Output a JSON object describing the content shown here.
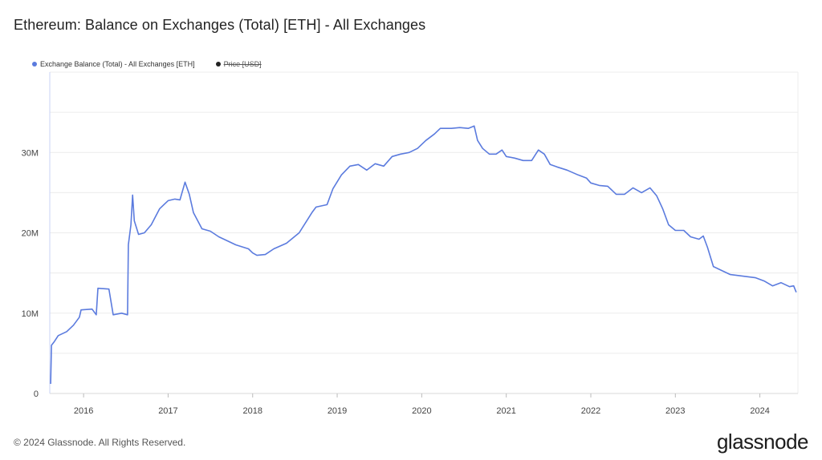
{
  "title": "Ethereum: Balance on Exchanges (Total) [ETH] - All Exchanges",
  "legend": {
    "items": [
      {
        "label": "Exchange Balance (Total) - All Exchanges [ETH]",
        "color": "#5b7bde",
        "active": true
      },
      {
        "label": "Price [USD]",
        "color": "#222222",
        "active": false
      }
    ]
  },
  "footer": {
    "copyright": "© 2024 Glassnode. All Rights Reserved.",
    "brand": "glassnode"
  },
  "chart_data": {
    "type": "line",
    "title": "Ethereum: Balance on Exchanges (Total) [ETH] - All Exchanges",
    "xlabel": "",
    "ylabel": "",
    "xlim": [
      2015.6,
      2024.45
    ],
    "ylim": [
      0,
      40000000
    ],
    "x_ticks": [
      {
        "value": 2016,
        "label": "2016"
      },
      {
        "value": 2017,
        "label": "2017"
      },
      {
        "value": 2018,
        "label": "2018"
      },
      {
        "value": 2019,
        "label": "2019"
      },
      {
        "value": 2020,
        "label": "2020"
      },
      {
        "value": 2021,
        "label": "2021"
      },
      {
        "value": 2022,
        "label": "2022"
      },
      {
        "value": 2023,
        "label": "2023"
      },
      {
        "value": 2024,
        "label": "2024"
      }
    ],
    "y_ticks": [
      {
        "value": 0,
        "label": "0"
      },
      {
        "value": 10000000,
        "label": "10M"
      },
      {
        "value": 20000000,
        "label": "20M"
      },
      {
        "value": 30000000,
        "label": "30M"
      }
    ],
    "grid": true,
    "legend_position": "top-left",
    "series": [
      {
        "name": "Exchange Balance (Total) - All Exchanges [ETH]",
        "color": "#5b7bde",
        "points": [
          [
            2015.61,
            1200000
          ],
          [
            2015.62,
            6000000
          ],
          [
            2015.65,
            6400000
          ],
          [
            2015.7,
            7200000
          ],
          [
            2015.8,
            7700000
          ],
          [
            2015.88,
            8500000
          ],
          [
            2015.95,
            9500000
          ],
          [
            2015.97,
            10400000
          ],
          [
            2016.1,
            10500000
          ],
          [
            2016.15,
            9800000
          ],
          [
            2016.17,
            13100000
          ],
          [
            2016.3,
            13000000
          ],
          [
            2016.35,
            9800000
          ],
          [
            2016.45,
            10000000
          ],
          [
            2016.52,
            9800000
          ],
          [
            2016.53,
            18500000
          ],
          [
            2016.56,
            21000000
          ],
          [
            2016.58,
            24700000
          ],
          [
            2016.6,
            21500000
          ],
          [
            2016.65,
            19800000
          ],
          [
            2016.72,
            20000000
          ],
          [
            2016.8,
            21000000
          ],
          [
            2016.9,
            23000000
          ],
          [
            2017.0,
            24000000
          ],
          [
            2017.08,
            24200000
          ],
          [
            2017.14,
            24100000
          ],
          [
            2017.2,
            26300000
          ],
          [
            2017.25,
            24800000
          ],
          [
            2017.3,
            22500000
          ],
          [
            2017.4,
            20500000
          ],
          [
            2017.5,
            20200000
          ],
          [
            2017.6,
            19500000
          ],
          [
            2017.7,
            19000000
          ],
          [
            2017.8,
            18500000
          ],
          [
            2017.95,
            18000000
          ],
          [
            2018.0,
            17500000
          ],
          [
            2018.05,
            17200000
          ],
          [
            2018.15,
            17300000
          ],
          [
            2018.25,
            18000000
          ],
          [
            2018.4,
            18700000
          ],
          [
            2018.55,
            20000000
          ],
          [
            2018.7,
            22500000
          ],
          [
            2018.75,
            23200000
          ],
          [
            2018.88,
            23500000
          ],
          [
            2018.95,
            25500000
          ],
          [
            2019.05,
            27200000
          ],
          [
            2019.15,
            28300000
          ],
          [
            2019.25,
            28500000
          ],
          [
            2019.35,
            27800000
          ],
          [
            2019.45,
            28600000
          ],
          [
            2019.55,
            28300000
          ],
          [
            2019.65,
            29500000
          ],
          [
            2019.75,
            29800000
          ],
          [
            2019.85,
            30000000
          ],
          [
            2019.95,
            30500000
          ],
          [
            2020.05,
            31500000
          ],
          [
            2020.15,
            32300000
          ],
          [
            2020.22,
            33000000
          ],
          [
            2020.35,
            33000000
          ],
          [
            2020.45,
            33100000
          ],
          [
            2020.55,
            33000000
          ],
          [
            2020.62,
            33300000
          ],
          [
            2020.66,
            31500000
          ],
          [
            2020.72,
            30500000
          ],
          [
            2020.8,
            29800000
          ],
          [
            2020.88,
            29800000
          ],
          [
            2020.95,
            30300000
          ],
          [
            2021.0,
            29500000
          ],
          [
            2021.1,
            29300000
          ],
          [
            2021.2,
            29000000
          ],
          [
            2021.3,
            29000000
          ],
          [
            2021.38,
            30300000
          ],
          [
            2021.45,
            29800000
          ],
          [
            2021.52,
            28500000
          ],
          [
            2021.6,
            28200000
          ],
          [
            2021.72,
            27800000
          ],
          [
            2021.85,
            27200000
          ],
          [
            2021.95,
            26800000
          ],
          [
            2022.0,
            26200000
          ],
          [
            2022.1,
            25900000
          ],
          [
            2022.2,
            25800000
          ],
          [
            2022.3,
            24800000
          ],
          [
            2022.4,
            24800000
          ],
          [
            2022.5,
            25600000
          ],
          [
            2022.6,
            25000000
          ],
          [
            2022.7,
            25600000
          ],
          [
            2022.78,
            24600000
          ],
          [
            2022.85,
            23000000
          ],
          [
            2022.92,
            21000000
          ],
          [
            2023.0,
            20300000
          ],
          [
            2023.1,
            20300000
          ],
          [
            2023.18,
            19500000
          ],
          [
            2023.28,
            19200000
          ],
          [
            2023.33,
            19600000
          ],
          [
            2023.38,
            18200000
          ],
          [
            2023.45,
            15800000
          ],
          [
            2023.55,
            15300000
          ],
          [
            2023.65,
            14800000
          ],
          [
            2023.8,
            14600000
          ],
          [
            2023.95,
            14400000
          ],
          [
            2024.05,
            14000000
          ],
          [
            2024.15,
            13400000
          ],
          [
            2024.25,
            13800000
          ],
          [
            2024.35,
            13300000
          ],
          [
            2024.4,
            13400000
          ],
          [
            2024.43,
            12600000
          ]
        ]
      }
    ]
  }
}
